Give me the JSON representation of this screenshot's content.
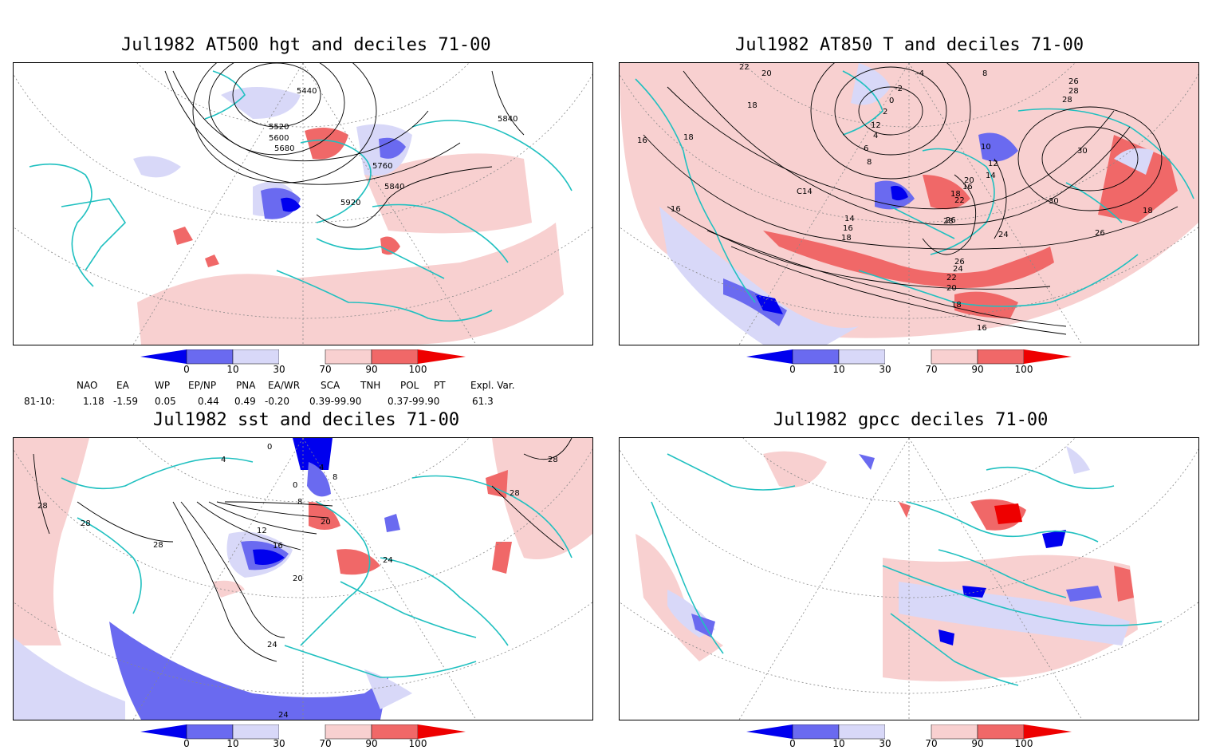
{
  "panels": [
    {
      "title": "Jul1982 AT500 hgt and deciles 71-00",
      "contour_labels": [
        "5440",
        "5520",
        "5600",
        "5680",
        "5760",
        "5840",
        "5920",
        "5840"
      ]
    },
    {
      "title": "Jul1982 AT850 T and deciles 71-00",
      "contour_labels": [
        "22",
        "20",
        "18",
        "16",
        "18",
        "-4",
        "-2",
        "0",
        "2",
        "12",
        "4",
        "6",
        "8",
        "10",
        "12",
        "14",
        "16",
        "18",
        "20",
        "22",
        "24",
        "26",
        "28",
        "30",
        "26",
        "18",
        "16",
        "14",
        "C14",
        "16",
        "18",
        "20",
        "22",
        "24",
        "26",
        "28",
        "18",
        "16",
        "8",
        "26",
        "28",
        "30"
      ]
    },
    {
      "title": "Jul1982 sst and deciles 71-00",
      "contour_labels": [
        "28",
        "28",
        "28",
        "0",
        "4",
        "8",
        "4",
        "0",
        "8",
        "12",
        "16",
        "20",
        "24",
        "20",
        "24",
        "28",
        "28",
        "24"
      ]
    },
    {
      "title": "Jul1982 gpcc deciles 71-00",
      "contour_labels": []
    }
  ],
  "colorbar": {
    "ticks": [
      "0",
      "10",
      "30",
      "70",
      "90",
      "100"
    ],
    "colors": {
      "dark_blue": "#0000ee",
      "mid_blue": "#6a6af0",
      "light_blue": "#d8d8f8",
      "white": "#ffffff",
      "light_red": "#f8d0d0",
      "mid_red": "#f06868",
      "dark_red": "#ee0000"
    }
  },
  "indices": {
    "headers": [
      "NAO",
      "EA",
      "WP",
      "EP/NP",
      "PNA",
      "EA/WR",
      "SCA",
      "TNH",
      "POL",
      "PT",
      "Expl. Var."
    ],
    "row_label": "81-10:",
    "values": [
      "1.18",
      "-1.59",
      "0.05",
      "0.44",
      "0.49",
      "-0.20",
      "0.39-99.90",
      "0.37-99.90",
      "61.3"
    ]
  },
  "map_colors": {
    "coast": "#20c0c0",
    "grid": "#888888",
    "contour": "#000000"
  }
}
